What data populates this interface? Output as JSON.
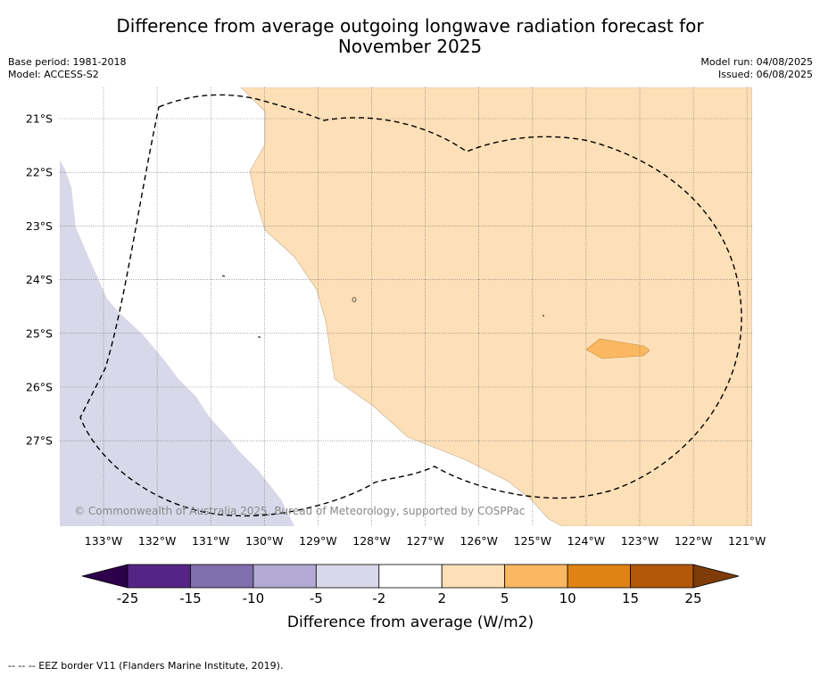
{
  "title": "Difference from average outgoing longwave radiation forecast for\nNovember 2025",
  "meta": {
    "base_period": "Base period: 1981-2018",
    "model": "Model: ACCESS-S2",
    "model_run": "Model run: 04/08/2025",
    "issued": "Issued: 06/08/2025"
  },
  "map": {
    "lat_labels": [
      "21°S",
      "22°S",
      "23°S",
      "24°S",
      "25°S",
      "26°S",
      "27°S"
    ],
    "lon_labels": [
      "133°W",
      "132°W",
      "131°W",
      "130°W",
      "129°W",
      "128°W",
      "127°W",
      "126°W",
      "125°W",
      "124°W",
      "123°W",
      "122°W",
      "121°W"
    ],
    "copyright": "© Commonwealth of Australia 2025, Bureau of Meteorology, supported by COSPPac",
    "eez_legend": "--  --  -- EEZ border V11 (Flanders Marine Institute, 2019)."
  },
  "colorbar": {
    "label": "Difference from average (W/m2)",
    "ticks": [
      "-25",
      "-15",
      "-10",
      "-5",
      "-2",
      "2",
      "5",
      "10",
      "15",
      "25"
    ],
    "colors": [
      "#562485",
      "#7f6fab",
      "#b2aad2",
      "#d8d8ea",
      "#ffffff",
      "#fde0b7",
      "#fbb862",
      "#e08314",
      "#b35806"
    ],
    "under_color": "#2d004b",
    "over_color": "#7f3b08"
  }
}
